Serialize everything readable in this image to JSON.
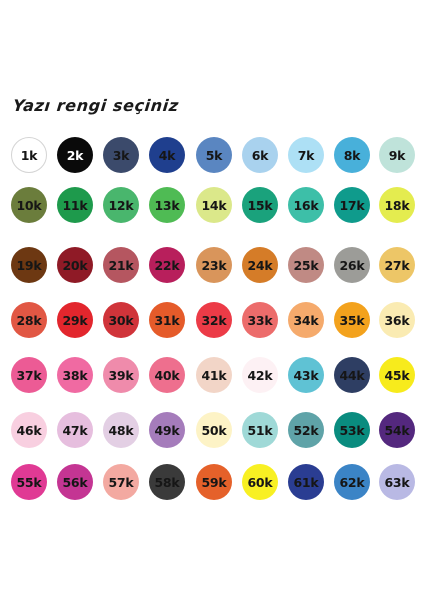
{
  "title": "Yazı rengi seçiniz",
  "swatches": [
    {
      "label": "1k",
      "color": "#ffffff"
    },
    {
      "label": "2k",
      "color": "#0a0a0a"
    },
    {
      "label": "3k",
      "color": "#3b4a6b"
    },
    {
      "label": "4k",
      "color": "#1f3f8e"
    },
    {
      "label": "5k",
      "color": "#5a86c1"
    },
    {
      "label": "6k",
      "color": "#a9d2ee"
    },
    {
      "label": "7k",
      "color": "#ade0f5"
    },
    {
      "label": "8k",
      "color": "#48b0da"
    },
    {
      "label": "9k",
      "color": "#bfe3da"
    },
    {
      "label": "10k",
      "color": "#6b7d3c"
    },
    {
      "label": "11k",
      "color": "#1e9a4c"
    },
    {
      "label": "12k",
      "color": "#49b66d"
    },
    {
      "label": "13k",
      "color": "#4fbb54"
    },
    {
      "label": "14k",
      "color": "#dbe88a"
    },
    {
      "label": "15k",
      "color": "#1aa27c"
    },
    {
      "label": "16k",
      "color": "#3dbfa8"
    },
    {
      "label": "17k",
      "color": "#0f9b8c"
    },
    {
      "label": "18k",
      "color": "#e4ec4f"
    },
    {
      "label": "19k",
      "color": "#6d3812"
    },
    {
      "label": "20k",
      "color": "#8f1a26"
    },
    {
      "label": "21k",
      "color": "#b55660"
    },
    {
      "label": "22k",
      "color": "#b81f5c"
    },
    {
      "label": "23k",
      "color": "#d9955b"
    },
    {
      "label": "24k",
      "color": "#d57c28"
    },
    {
      "label": "25k",
      "color": "#c08a84"
    },
    {
      "label": "26k",
      "color": "#9c9c98"
    },
    {
      "label": "27k",
      "color": "#edc667"
    },
    {
      "label": "28k",
      "color": "#e15744"
    },
    {
      "label": "29k",
      "color": "#e2262d"
    },
    {
      "label": "30k",
      "color": "#d0343a"
    },
    {
      "label": "31k",
      "color": "#e55b2a"
    },
    {
      "label": "32k",
      "color": "#ec3b47"
    },
    {
      "label": "33k",
      "color": "#ec6c6b"
    },
    {
      "label": "34k",
      "color": "#f5aa6c"
    },
    {
      "label": "35k",
      "color": "#f3a21d"
    },
    {
      "label": "36k",
      "color": "#faebb2"
    },
    {
      "label": "37k",
      "color": "#ec5b95"
    },
    {
      "label": "38k",
      "color": "#f06aa2"
    },
    {
      "label": "39k",
      "color": "#ef8bab"
    },
    {
      "label": "40k",
      "color": "#ee6f8e"
    },
    {
      "label": "41k",
      "color": "#f2d5c7"
    },
    {
      "label": "42k",
      "color": "#fdf1f4"
    },
    {
      "label": "43k",
      "color": "#5fc2d4"
    },
    {
      "label": "44k",
      "color": "#2e3e63"
    },
    {
      "label": "45k",
      "color": "#f7eb1c"
    },
    {
      "label": "46k",
      "color": "#f8cfe0"
    },
    {
      "label": "47k",
      "color": "#e6bede"
    },
    {
      "label": "48k",
      "color": "#e3cfe4"
    },
    {
      "label": "49k",
      "color": "#a57cbb"
    },
    {
      "label": "50k",
      "color": "#fdf3c6"
    },
    {
      "label": "51k",
      "color": "#9fd9d7"
    },
    {
      "label": "52k",
      "color": "#5fa3a8"
    },
    {
      "label": "53k",
      "color": "#0a8c7f"
    },
    {
      "label": "54k",
      "color": "#54287e"
    },
    {
      "label": "55k",
      "color": "#e03a94"
    },
    {
      "label": "56k",
      "color": "#c43593"
    },
    {
      "label": "57k",
      "color": "#f3a9a1"
    },
    {
      "label": "58k",
      "color": "#3a3a3a"
    },
    {
      "label": "59k",
      "color": "#e5612a"
    },
    {
      "label": "60k",
      "color": "#f8f023"
    },
    {
      "label": "61k",
      "color": "#2a3d92"
    },
    {
      "label": "62k",
      "color": "#3b84c6"
    },
    {
      "label": "63k",
      "color": "#b9b9e4"
    }
  ]
}
